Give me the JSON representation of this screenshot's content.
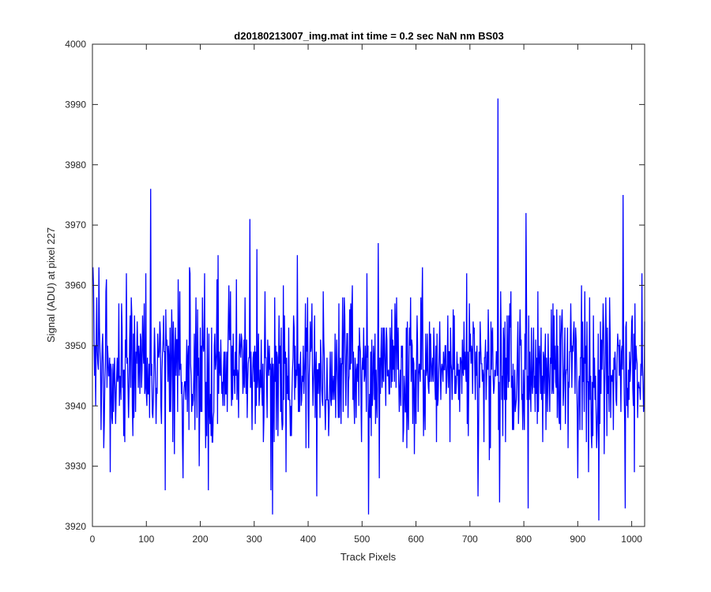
{
  "colors": {
    "series": "#0000ff",
    "axes": "#262626",
    "background": "#ffffff"
  },
  "chart_data": {
    "type": "line",
    "title": "d20180213007_img.mat int time = 0.2 sec  NaN nm BS03",
    "xlabel": "Track Pixels",
    "ylabel": "Signal (ADU) at pixel 227",
    "xlim": [
      0,
      1024
    ],
    "ylim": [
      3920,
      4000
    ],
    "xticks": [
      0,
      100,
      200,
      300,
      400,
      500,
      600,
      700,
      800,
      900,
      1000
    ],
    "yticks": [
      3920,
      3930,
      3940,
      3950,
      3960,
      3970,
      3980,
      3990,
      4000
    ],
    "grid": false,
    "series": [
      {
        "color": "#0000ff",
        "x_start": 1,
        "x_step": 1,
        "noise_mean": 3946,
        "noise_std": 6,
        "points": [
          [
            1,
            3963
          ],
          [
            6,
            3940
          ],
          [
            12,
            3963
          ],
          [
            22,
            3937
          ],
          [
            33,
            3929
          ],
          [
            45,
            3945
          ],
          [
            63,
            3962
          ],
          [
            75,
            3935
          ],
          [
            99,
            3962
          ],
          [
            108,
            3976
          ],
          [
            135,
            3926
          ],
          [
            168,
            3928
          ],
          [
            180,
            3963
          ],
          [
            215,
            3926
          ],
          [
            233,
            3965
          ],
          [
            292,
            3971
          ],
          [
            305,
            3966
          ],
          [
            331,
            3926
          ],
          [
            334,
            3922
          ],
          [
            380,
            3965
          ],
          [
            416,
            3925
          ],
          [
            512,
            3922
          ],
          [
            530,
            3967
          ],
          [
            612,
            3963
          ],
          [
            715,
            3925
          ],
          [
            752,
            3991
          ],
          [
            755,
            3924
          ],
          [
            804,
            3972
          ],
          [
            808,
            3923
          ],
          [
            920,
            3929
          ],
          [
            939,
            3921
          ],
          [
            984,
            3975
          ],
          [
            988,
            3923
          ],
          [
            1005,
            3929
          ],
          [
            1024,
            3954
          ]
        ]
      }
    ]
  }
}
